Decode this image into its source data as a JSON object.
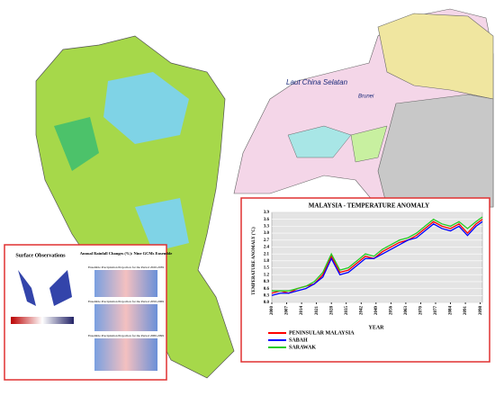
{
  "map": {
    "sea_label": "Laut China Selatan",
    "city_label": "Brunei"
  },
  "inset_panel": {
    "left_title": "Surface Observations",
    "right_title": "Annual Rainfall Changes (%): Nine GCMs Ensemble",
    "panels": [
      "Ensemble Precipitation Projection for the Period 2020-2039",
      "Ensemble Precipitation Projection for the Period 2050-2069",
      "Ensemble Precipitation Projection for the Period 2080-2099"
    ]
  },
  "chart_data": {
    "type": "line",
    "title": "MALAYSIA - TEMPERATURE ANOMALY",
    "y_label": "TEMPERATURE ANOMALY (°C)",
    "x_label": "YEAR",
    "x": [
      2000,
      2004,
      2008,
      2012,
      2016,
      2020,
      2024,
      2028,
      2032,
      2036,
      2040,
      2044,
      2048,
      2052,
      2056,
      2060,
      2064,
      2068,
      2072,
      2076,
      2080,
      2084,
      2088,
      2092,
      2096,
      2099
    ],
    "series": [
      {
        "name": "PENINSULAR MALAYSIA",
        "color": "#ff0000",
        "values": [
          0.4,
          0.5,
          0.4,
          0.6,
          0.7,
          0.8,
          1.2,
          2.0,
          1.3,
          1.4,
          1.7,
          2.0,
          1.9,
          2.2,
          2.4,
          2.6,
          2.7,
          2.9,
          3.2,
          3.5,
          3.3,
          3.2,
          3.4,
          3.0,
          3.4,
          3.6
        ]
      },
      {
        "name": "SABAH",
        "color": "#0000ff",
        "values": [
          0.3,
          0.4,
          0.4,
          0.5,
          0.6,
          0.8,
          1.1,
          1.9,
          1.2,
          1.3,
          1.6,
          1.9,
          1.9,
          2.1,
          2.3,
          2.5,
          2.7,
          2.8,
          3.1,
          3.4,
          3.2,
          3.1,
          3.3,
          2.9,
          3.3,
          3.5
        ]
      },
      {
        "name": "SARAWAK",
        "color": "#22cc22",
        "values": [
          0.5,
          0.5,
          0.5,
          0.6,
          0.7,
          0.9,
          1.3,
          2.1,
          1.4,
          1.5,
          1.8,
          2.1,
          2.0,
          2.3,
          2.5,
          2.7,
          2.8,
          3.0,
          3.3,
          3.6,
          3.4,
          3.3,
          3.5,
          3.2,
          3.5,
          3.7
        ]
      }
    ],
    "xlim": [
      2000,
      2099
    ],
    "xticks": [
      2000,
      2007,
      2014,
      2021,
      2028,
      2035,
      2042,
      2049,
      2056,
      2063,
      2070,
      2077,
      2084,
      2091,
      2098
    ],
    "ylim": [
      0,
      3.9
    ],
    "yticks": [
      {
        "value": 0,
        "label": "0.0"
      },
      0.3,
      0.6,
      0.9,
      1.2,
      1.5,
      1.8,
      2.1,
      2.4,
      2.7,
      {
        "value": 3,
        "label": "3.0"
      },
      3.3,
      3.6,
      3.9
    ],
    "grid": true
  }
}
